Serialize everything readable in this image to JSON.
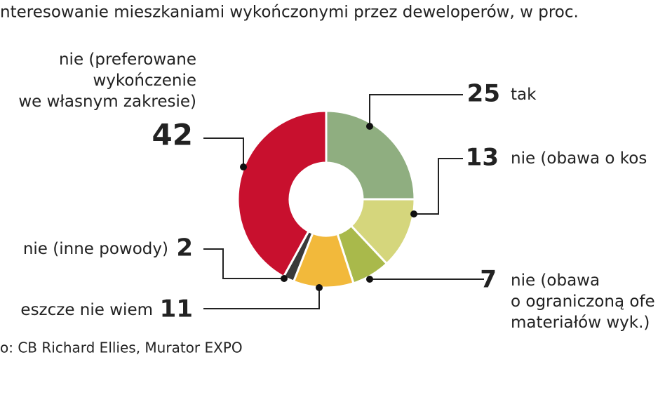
{
  "chart_data": {
    "type": "donut",
    "title": "nteresowanie mieszkaniami wykończonymi przez deweloperów, w proc.",
    "source": "o: CB Richard Ellies, Murator EXPO",
    "categories": [
      "tak",
      "nie (obawa o kos",
      "nie (obawa\no ograniczoną ofe\nmateriałów wyk.)",
      "eszcze nie wiem",
      "nie (inne powody)",
      "nie (preferowane\nwykończenie\nwe własnym zakresie)"
    ],
    "values": [
      25,
      13,
      7,
      11,
      2,
      42
    ],
    "colors": [
      "#8fae80",
      "#d5d67c",
      "#a9b94b",
      "#f2b93b",
      "#3a3a3a",
      "#c8102e"
    ]
  }
}
